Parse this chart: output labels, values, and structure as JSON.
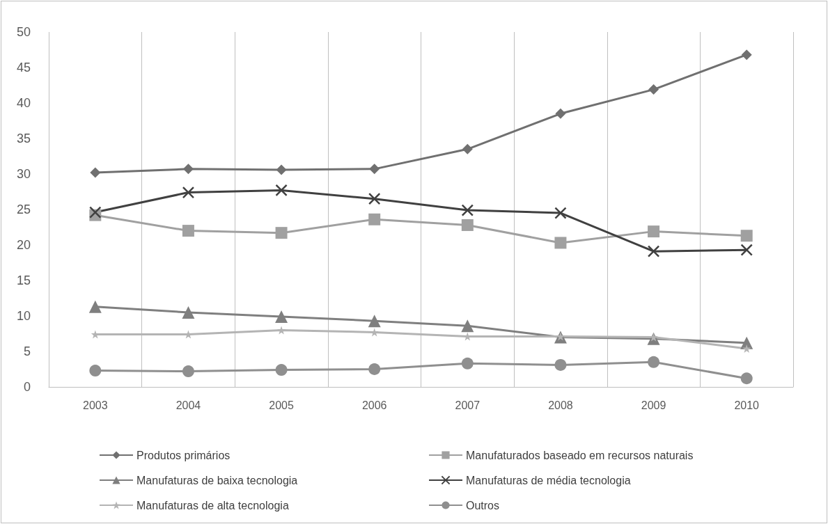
{
  "chart_data": {
    "type": "line",
    "categories": [
      "2003",
      "2004",
      "2005",
      "2006",
      "2007",
      "2008",
      "2009",
      "2010"
    ],
    "series": [
      {
        "name": "Produtos primários",
        "color": "#707070",
        "marker": "diamond",
        "values": [
          30.2,
          30.7,
          30.6,
          30.7,
          33.5,
          38.5,
          41.9,
          46.8
        ]
      },
      {
        "name": "Manufaturados baseado em recursos naturais",
        "color": "#a0a0a0",
        "marker": "square",
        "values": [
          24.2,
          22.0,
          21.7,
          23.6,
          22.8,
          20.3,
          21.9,
          21.3
        ]
      },
      {
        "name": "Manufaturas de baixa tecnologia",
        "color": "#7f7f7f",
        "marker": "triangle",
        "values": [
          11.3,
          10.5,
          9.9,
          9.3,
          8.6,
          7.0,
          6.8,
          6.2
        ]
      },
      {
        "name": "Manufaturas de média tecnologia",
        "color": "#404040",
        "marker": "cross",
        "values": [
          24.6,
          27.4,
          27.7,
          26.5,
          24.9,
          24.5,
          19.1,
          19.3
        ]
      },
      {
        "name": "Manufaturas de alta tecnologia",
        "color": "#b4b4b4",
        "marker": "star",
        "values": [
          7.4,
          7.4,
          8.0,
          7.7,
          7.1,
          7.1,
          7.0,
          5.4
        ]
      },
      {
        "name": "Outros",
        "color": "#8f8f8f",
        "marker": "circle",
        "values": [
          2.3,
          2.2,
          2.4,
          2.5,
          3.3,
          3.1,
          3.5,
          1.2
        ]
      }
    ],
    "ylim": [
      0,
      50
    ],
    "yticks": [
      0,
      5,
      10,
      15,
      20,
      25,
      30,
      35,
      40,
      45,
      50
    ],
    "grid": "x",
    "legend": "bottom",
    "line_style": "solid"
  }
}
